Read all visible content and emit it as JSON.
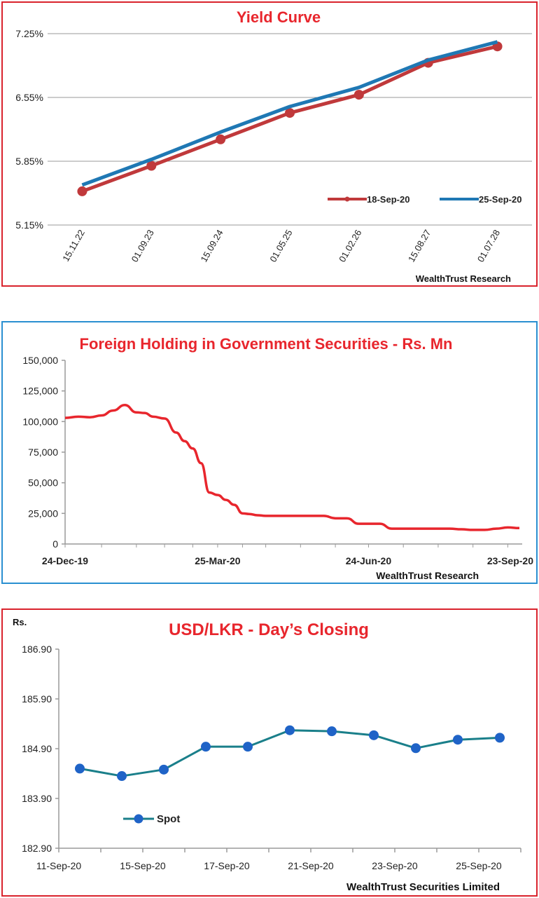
{
  "charts": [
    {
      "type": "line",
      "title": "Yield Curve",
      "source": "WealthTrust Research",
      "categories": [
        "15.11.22",
        "01.09.23",
        "15.09.24",
        "01.05.25",
        "01.02.26",
        "15.08.27",
        "01.07.28"
      ],
      "y_ticks": [
        "7.25%",
        "6.55%",
        "5.85%",
        "5.15%"
      ],
      "ylim": [
        5.15,
        7.25
      ],
      "grid": true,
      "legend_position": "bottom-right",
      "series": [
        {
          "name": "18-Sep-20",
          "color": "#c0393b",
          "values": [
            5.52,
            5.8,
            6.09,
            6.38,
            6.58,
            6.93,
            7.11
          ]
        },
        {
          "name": "25-Sep-20",
          "color": "#1f78b4",
          "values": [
            5.59,
            5.87,
            6.17,
            6.45,
            6.66,
            6.96,
            7.16
          ]
        }
      ]
    },
    {
      "type": "line",
      "title": "Foreign Holding in Government Securities - Rs. Mn",
      "source": "WealthTrust Research",
      "x_ticks": [
        "24-Dec-19",
        "25-Mar-20",
        "24-Jun-20",
        "23-Sep-20"
      ],
      "y_ticks": [
        "150,000",
        "125,000",
        "100,000",
        "75,000",
        "50,000",
        "25,000",
        "0"
      ],
      "ylim": [
        0,
        150000
      ],
      "xlim": [
        "2019-12-24",
        "2020-09-23"
      ],
      "grid": false,
      "series": [
        {
          "color": "#e8262d",
          "x": [
            "2019-12-24",
            "2020-01-01",
            "2020-01-08",
            "2020-01-15",
            "2020-01-22",
            "2020-01-29",
            "2020-02-05",
            "2020-02-10",
            "2020-02-15",
            "2020-02-22",
            "2020-02-29",
            "2020-03-05",
            "2020-03-10",
            "2020-03-15",
            "2020-03-20",
            "2020-03-25",
            "2020-03-30",
            "2020-04-04",
            "2020-04-09",
            "2020-04-13",
            "2020-04-18",
            "2020-04-23",
            "2020-04-30",
            "2020-05-07",
            "2020-05-14",
            "2020-05-21",
            "2020-05-28",
            "2020-06-04",
            "2020-06-11",
            "2020-06-18",
            "2020-06-24",
            "2020-07-01",
            "2020-07-08",
            "2020-07-15",
            "2020-07-22",
            "2020-07-29",
            "2020-08-05",
            "2020-08-12",
            "2020-08-19",
            "2020-08-26",
            "2020-09-02",
            "2020-09-09",
            "2020-09-16",
            "2020-09-23"
          ],
          "values": [
            103000,
            104000,
            103500,
            105000,
            109000,
            113500,
            107500,
            107000,
            104000,
            102500,
            91000,
            84000,
            78000,
            66000,
            42000,
            40000,
            36000,
            32000,
            25000,
            24500,
            23500,
            23000,
            23000,
            23000,
            23000,
            23000,
            23000,
            21000,
            21000,
            16500,
            16500,
            16500,
            12500,
            12500,
            12500,
            12500,
            12500,
            12500,
            12000,
            11500,
            11500,
            12500,
            13500,
            13000
          ]
        }
      ]
    },
    {
      "type": "line",
      "title": "USD/LKR - Day’s Closing",
      "unit_label": "Rs.",
      "source": "WealthTrust Securities Limited",
      "x_ticks": [
        "11-Sep-20",
        "15-Sep-20",
        "17-Sep-20",
        "21-Sep-20",
        "23-Sep-20",
        "25-Sep-20"
      ],
      "y_ticks": [
        "186.90",
        "185.90",
        "184.90",
        "183.90",
        "182.90"
      ],
      "ylim": [
        182.9,
        186.9
      ],
      "grid": false,
      "legend_position": "bottom-left",
      "series": [
        {
          "name": "Spot",
          "color": "#1a7f8a",
          "marker_color": "#1f63c7",
          "values": [
            184.5,
            184.35,
            184.48,
            184.94,
            184.94,
            185.27,
            185.25,
            185.17,
            184.91,
            185.08,
            185.12
          ]
        }
      ]
    }
  ]
}
